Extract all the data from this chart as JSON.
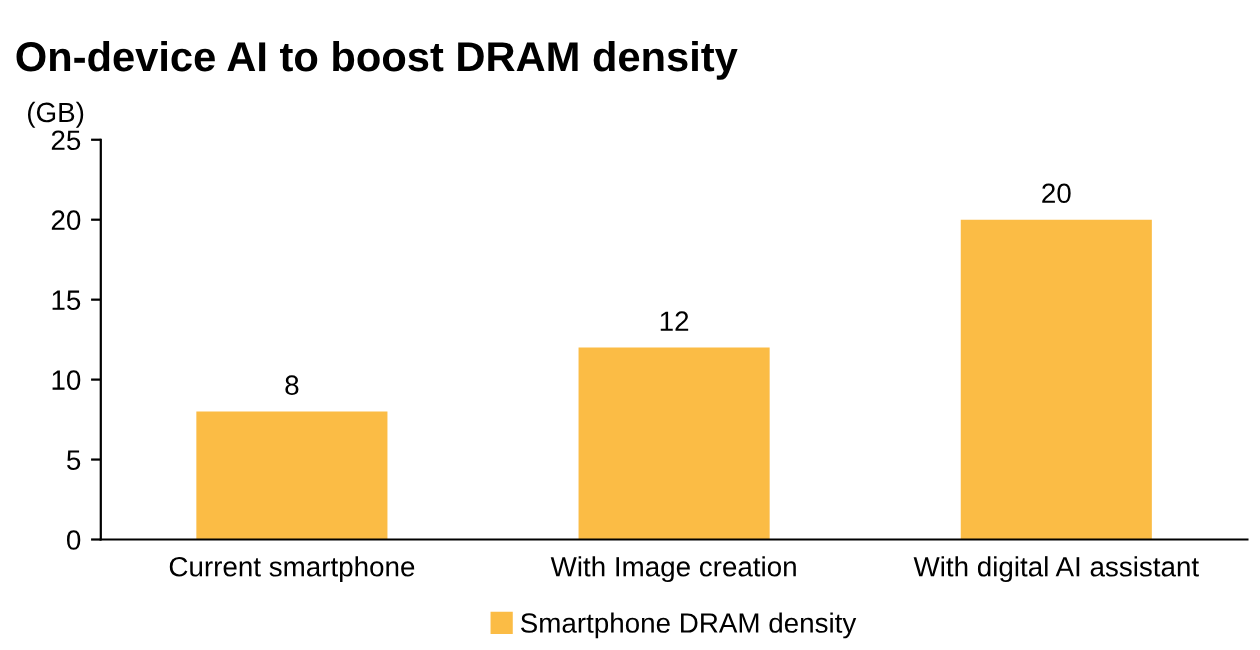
{
  "chart_data": {
    "type": "bar",
    "title": "On-device AI to boost DRAM density",
    "ylabel": "(GB)",
    "categories": [
      "Current smartphone",
      "With Image creation",
      "With digital AI assistant"
    ],
    "series": [
      {
        "name": "Smartphone DRAM density",
        "color": "#fbbc45",
        "values": [
          8,
          12,
          20
        ]
      }
    ],
    "ylim": [
      0,
      25
    ],
    "yticks": [
      0,
      5,
      10,
      15,
      20,
      25
    ],
    "grid": false,
    "legend": "bottom",
    "data_labels": true
  }
}
